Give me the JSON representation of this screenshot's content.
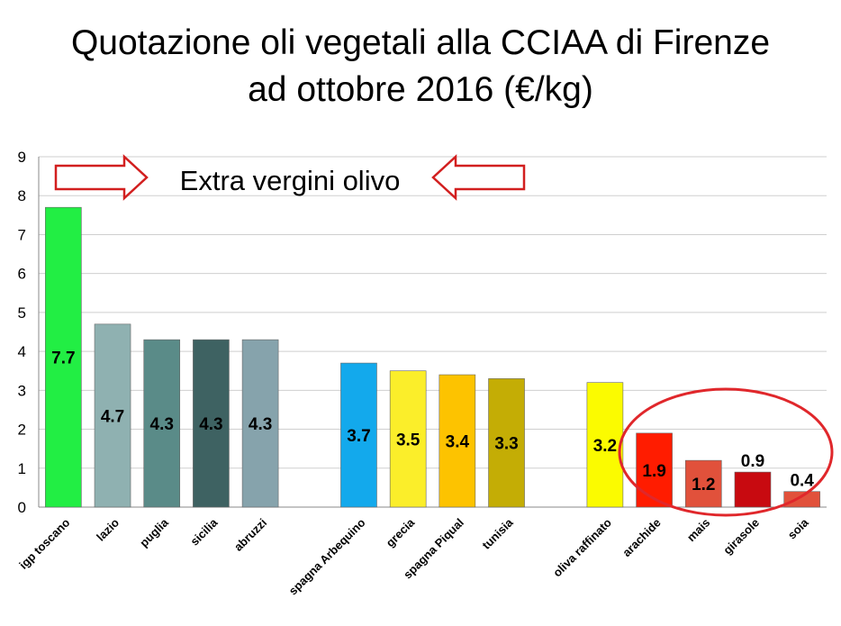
{
  "title_line1": "Quotazione oli vegetali alla CCIAA di Firenze",
  "title_line2": "ad ottobre 2016  (€/kg)",
  "annotation": "Extra vergini olivo",
  "colors": {
    "arrow": "#d21f1f",
    "ellipse": "#e0272b",
    "grid": "#cfcfcf",
    "axis": "#888888"
  },
  "chart_data": {
    "type": "bar",
    "title": "Quotazione oli vegetali alla CCIAA di Firenze ad ottobre 2016  (€/kg)",
    "xlabel": "",
    "ylabel": "",
    "ylim": [
      0,
      9
    ],
    "yticks": [
      0,
      1,
      2,
      3,
      4,
      5,
      6,
      7,
      8,
      9
    ],
    "grid": true,
    "categories": [
      "igp toscano",
      "lazio",
      "puglia",
      "sicilia",
      "abruzzi",
      "",
      "spagna Arbequino",
      "grecia",
      "spagna Piqual",
      "tunisia",
      "",
      "oliva raffinato",
      "arachide",
      "mais",
      "girasole",
      "soia"
    ],
    "values": [
      7.7,
      4.7,
      4.3,
      4.3,
      4.3,
      null,
      3.7,
      3.5,
      3.4,
      3.3,
      null,
      3.2,
      1.9,
      1.2,
      0.9,
      0.4
    ],
    "data_labels": [
      "7.7",
      "4.7",
      "4.3",
      "4.3",
      "4.3",
      "",
      "3.7",
      "3.5",
      "3.4",
      "3.3",
      "",
      "3.2",
      "1.9",
      "1.2",
      "0.9",
      "0.4"
    ],
    "bar_colors": [
      "#22ee44",
      "#8fb1b1",
      "#5a8b88",
      "#3e6262",
      "#86a3ac",
      "",
      "#13a9ec",
      "#fbee2a",
      "#fdc300",
      "#c4ad05",
      "",
      "#fbfb00",
      "#ff1c00",
      "#e1513b",
      "#c80a10",
      "#e1513b"
    ]
  }
}
